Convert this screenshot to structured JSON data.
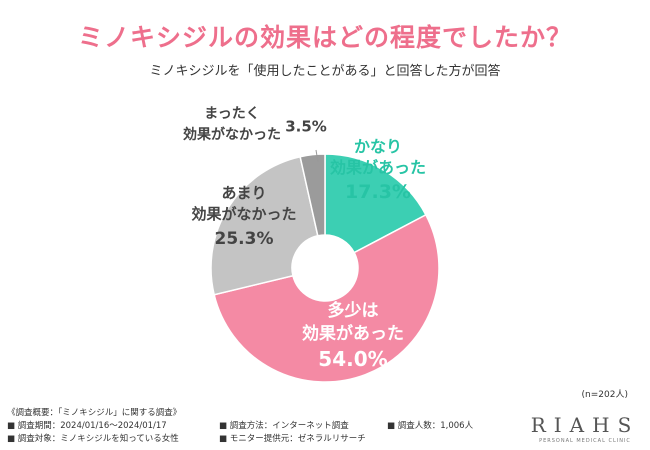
{
  "header": {
    "title": "ミノキシジルの効果はどの程度でしたか？",
    "subtitle": "ミノキシジルを「使用したことがある」と回答した方が回答"
  },
  "chart_data": {
    "type": "pie",
    "donut": true,
    "slices": [
      {
        "label_lines": [
          "かなり",
          "効果があった"
        ],
        "value": 17.3,
        "value_text": "17.3%",
        "color": "#3ccfb3",
        "label_color": "#27c4a5"
      },
      {
        "label_lines": [
          "多少は",
          "効果があった"
        ],
        "value": 54.0,
        "value_text": "54.0%",
        "color": "#f48aa4",
        "label_color": "#ffffff"
      },
      {
        "label_lines": [
          "あまり",
          "効果がなかった"
        ],
        "value": 25.3,
        "value_text": "25.3%",
        "color": "#c4c4c4",
        "label_color": "#444444"
      },
      {
        "label_lines": [
          "まったく",
          "効果がなかった"
        ],
        "value": 3.5,
        "value_text": "3.5%",
        "color": "#9b9b9b",
        "label_color": "#444444"
      }
    ]
  },
  "sample_note": "(n=202人)",
  "footer": {
    "survey": "《調査概要：「ミノキシジル」に関する調査》",
    "items": [
      "■ 調査期間：2024/01/16～2024/01/17",
      "■ 調査対象：ミノキシジルを知っている女性",
      "■ 調査方法：インターネット調査",
      "■ モニター提供元：ゼネラルリサーチ",
      "■ 調査人数：1,006人"
    ]
  },
  "logo": {
    "mark": "RIAHS",
    "sub": "PERSONAL MEDICAL CLINIC"
  }
}
